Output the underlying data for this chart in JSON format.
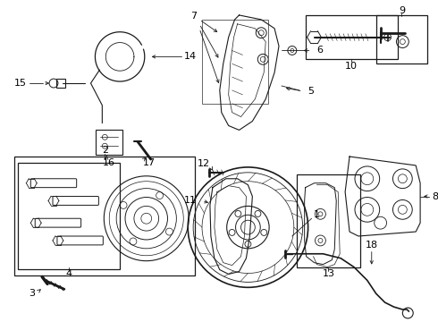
{
  "bg_color": "#ffffff",
  "line_color": "#1a1a1a",
  "gray_color": "#666666",
  "fig_w": 4.9,
  "fig_h": 3.6,
  "dpi": 100
}
